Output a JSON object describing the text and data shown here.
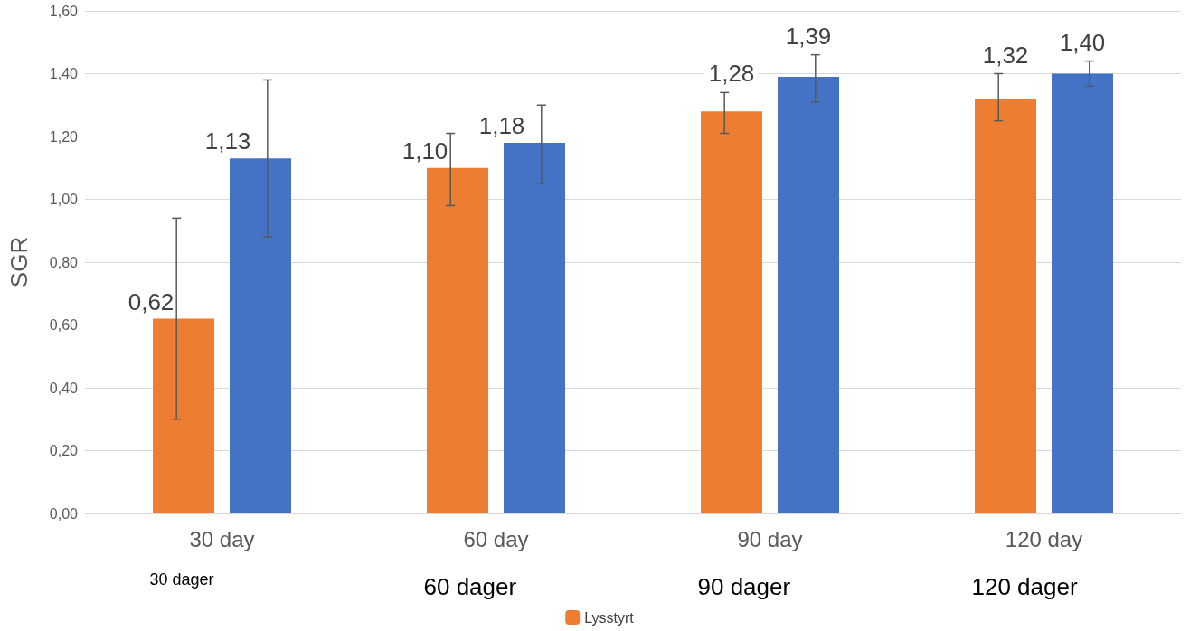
{
  "chart_data": {
    "type": "bar",
    "ylabel": "SGR",
    "categories": [
      "30 day",
      "60 day",
      "90 day",
      "120 day"
    ],
    "series": [
      {
        "name": "Lysstyrt",
        "color": "#ed7d31",
        "values": [
          0.62,
          1.1,
          1.28,
          1.32
        ],
        "value_labels": [
          "0,62",
          "1,10",
          "1,28",
          "1,32"
        ],
        "errors": [
          [
            0.3,
            0.94
          ],
          [
            0.98,
            1.21
          ],
          [
            1.21,
            1.34
          ],
          [
            1.25,
            1.4
          ]
        ]
      },
      {
        "color": "#4472c4",
        "values": [
          1.13,
          1.18,
          1.39,
          1.4
        ],
        "value_labels": [
          "1,13",
          "1,18",
          "1,39",
          "1,40"
        ],
        "errors": [
          [
            0.88,
            1.38
          ],
          [
            1.05,
            1.3
          ],
          [
            1.31,
            1.46
          ],
          [
            1.36,
            1.44
          ]
        ]
      }
    ],
    "ylim": [
      0,
      1.6
    ],
    "yticks": [
      {
        "value": 0,
        "label": "0,00"
      },
      {
        "value": 0.2,
        "label": "0,20"
      },
      {
        "value": 0.4,
        "label": "0,40"
      },
      {
        "value": 0.6,
        "label": "0,60"
      },
      {
        "value": 0.8,
        "label": "0,80"
      },
      {
        "value": 1.0,
        "label": "1,00"
      },
      {
        "value": 1.2,
        "label": "1,20"
      },
      {
        "value": 1.4,
        "label": "1,40"
      },
      {
        "value": 1.6,
        "label": "1,60"
      }
    ],
    "grid": "y",
    "legend": "bottom",
    "annotations": [
      "30 dager",
      "60 dager",
      "90 dager",
      "120 dager"
    ]
  }
}
